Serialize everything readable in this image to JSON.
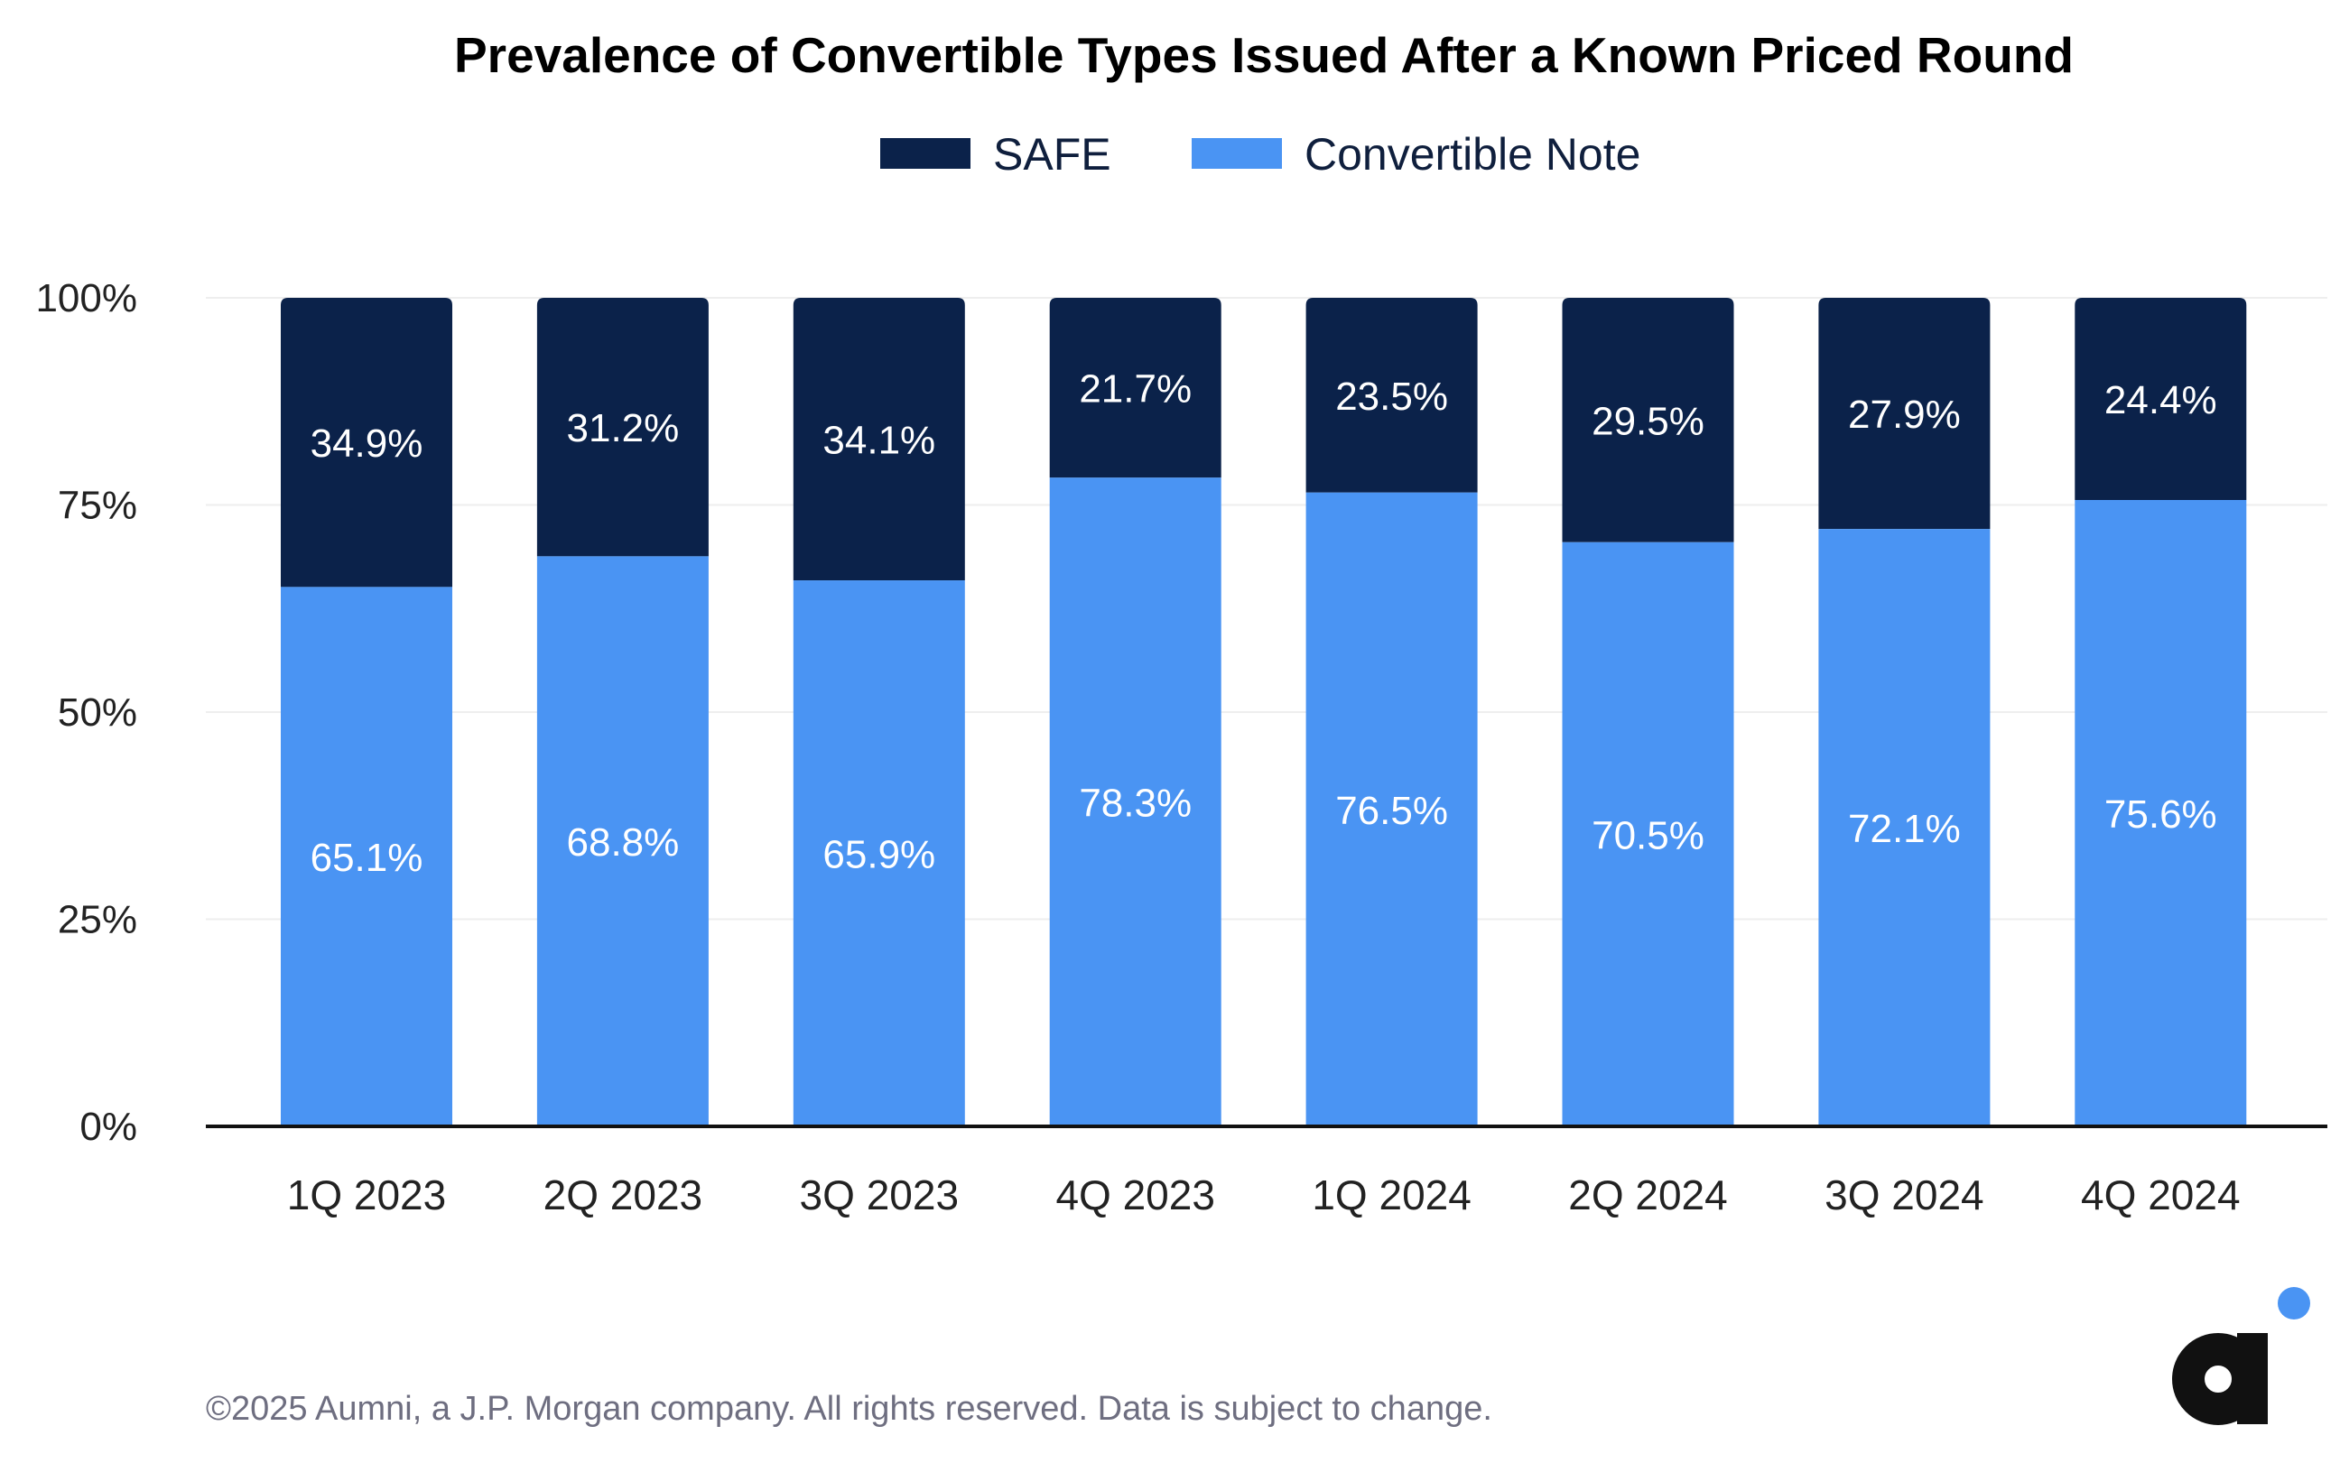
{
  "chart_data": {
    "type": "bar",
    "stacked": true,
    "title": "Prevalence of Convertible Types Issued After a Known Priced Round",
    "xlabel": "",
    "ylabel": "",
    "ylim": [
      0,
      100
    ],
    "y_ticks": [
      "0%",
      "25%",
      "50%",
      "75%",
      "100%"
    ],
    "y_tick_values": [
      0,
      25,
      50,
      75,
      100
    ],
    "grid": true,
    "legend_position": "top-center",
    "categories": [
      "1Q 2023",
      "2Q 2023",
      "3Q 2023",
      "4Q 2023",
      "1Q 2024",
      "2Q 2024",
      "3Q 2024",
      "4Q 2024"
    ],
    "series": [
      {
        "name": "Convertible Note",
        "color": "#4a94f3",
        "values": [
          65.1,
          68.8,
          65.9,
          78.3,
          76.5,
          70.5,
          72.1,
          75.6
        ],
        "labels": [
          "65.1%",
          "68.8%",
          "65.9%",
          "78.3%",
          "76.5%",
          "70.5%",
          "72.1%",
          "75.6%"
        ]
      },
      {
        "name": "SAFE",
        "color": "#0b224a",
        "values": [
          34.9,
          31.2,
          34.1,
          21.7,
          23.5,
          29.5,
          27.9,
          24.4
        ],
        "labels": [
          "34.9%",
          "31.2%",
          "34.1%",
          "21.7%",
          "23.5%",
          "29.5%",
          "27.9%",
          "24.4%"
        ]
      }
    ],
    "legend": [
      "SAFE",
      "Convertible Note"
    ]
  },
  "footer": "©2025 Aumni, a J.P. Morgan company. All rights reserved. Data is subject to change.",
  "logo": {
    "letter": "a",
    "letter_color": "#111111",
    "dot_color": "#4a94f3"
  },
  "colors": {
    "axis": "#111111",
    "grid": "#eeeeee"
  }
}
